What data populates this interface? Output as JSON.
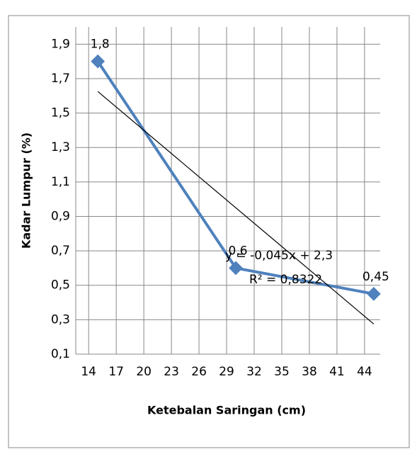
{
  "chart_data": {
    "type": "line",
    "xlabel": "Ketebalan Saringan (cm)",
    "ylabel": "Kadar Lumpur (%)",
    "x": [
      15,
      30,
      45
    ],
    "series": [
      {
        "name": "Kadar Lumpur",
        "color": "#4f81bd",
        "values": [
          1.8,
          0.6,
          0.45
        ],
        "value_labels": [
          "1,8",
          "0,6",
          "0,45"
        ]
      }
    ],
    "trendline": {
      "slope": -0.045,
      "intercept": 2.3,
      "equation": "y = -0,045x + 2,3",
      "r2": "R² = 0,8322"
    },
    "xlim": [
      12.6,
      45.7
    ],
    "xticks": [
      14,
      17,
      20,
      23,
      26,
      29,
      32,
      35,
      38,
      41,
      44
    ],
    "ylim": [
      0.1,
      2.0
    ],
    "yticks": [
      {
        "value": 0.1,
        "label": "0,1"
      },
      {
        "value": 0.3,
        "label": "0,3"
      },
      {
        "value": 0.5,
        "label": "0,5"
      },
      {
        "value": 0.7,
        "label": "0,7"
      },
      {
        "value": 0.9,
        "label": "0,9"
      },
      {
        "value": 1.1,
        "label": "1,1"
      },
      {
        "value": 1.3,
        "label": "1,3"
      },
      {
        "value": 1.5,
        "label": "1,5"
      },
      {
        "value": 1.7,
        "label": "1,7"
      },
      {
        "value": 1.9,
        "label": "1,9"
      }
    ],
    "grid": true
  }
}
